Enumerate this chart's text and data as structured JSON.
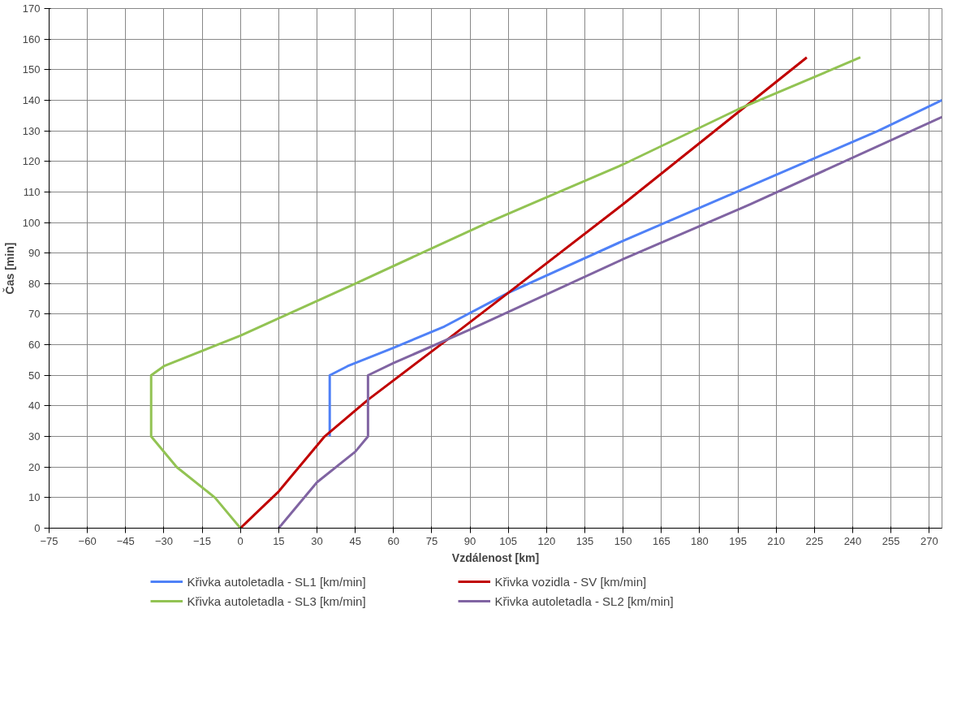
{
  "chart_data": {
    "type": "line",
    "xlabel": "Vzdálenost [km]",
    "ylabel": "Čas [min]",
    "xlim": [
      -75,
      275
    ],
    "ylim": [
      0,
      170
    ],
    "xticks": [
      -75,
      -60,
      -45,
      -30,
      -15,
      0,
      15,
      30,
      45,
      60,
      75,
      90,
      105,
      120,
      135,
      150,
      165,
      180,
      195,
      210,
      225,
      240,
      255,
      270
    ],
    "yticks": [
      0,
      10,
      20,
      30,
      40,
      50,
      60,
      70,
      80,
      90,
      100,
      110,
      120,
      130,
      140,
      150,
      160,
      170
    ],
    "grid": true,
    "legend": "bottom",
    "marker": "none",
    "line_style": "solid",
    "series": [
      {
        "name": "Křivka autoletadla - SL1 [km/min]",
        "color": "#4f81f7",
        "x": [
          35,
          35,
          42,
          60,
          80,
          105,
          150,
          200,
          250,
          275
        ],
        "values": [
          30,
          50,
          53,
          59,
          66,
          77,
          94,
          112,
          130,
          140
        ]
      },
      {
        "name": "Křivka vozidla - SV [km/min]",
        "color": "#c00000",
        "x": [
          0,
          5,
          15,
          33,
          50,
          80,
          105,
          150,
          195,
          222
        ],
        "values": [
          0,
          4,
          12,
          30,
          42,
          61,
          77,
          106,
          136,
          154
        ]
      },
      {
        "name": "Křivka autoletadla - SL3 [km/min]",
        "color": "#92c353",
        "x": [
          0,
          -10,
          -25,
          -35,
          -35,
          -30,
          0,
          45,
          97,
          150,
          195,
          243
        ],
        "values": [
          0,
          10,
          20,
          30,
          50,
          53,
          63,
          80,
          100,
          119,
          137,
          154
        ]
      },
      {
        "name": "Křivka autoletadla - SL2 [km/min]",
        "color": "#8064a2",
        "x": [
          15,
          30,
          45,
          50,
          50,
          60,
          90,
          150,
          200,
          275
        ],
        "values": [
          0,
          15,
          25,
          30,
          50,
          54,
          65,
          88,
          106,
          134.5
        ]
      }
    ]
  }
}
